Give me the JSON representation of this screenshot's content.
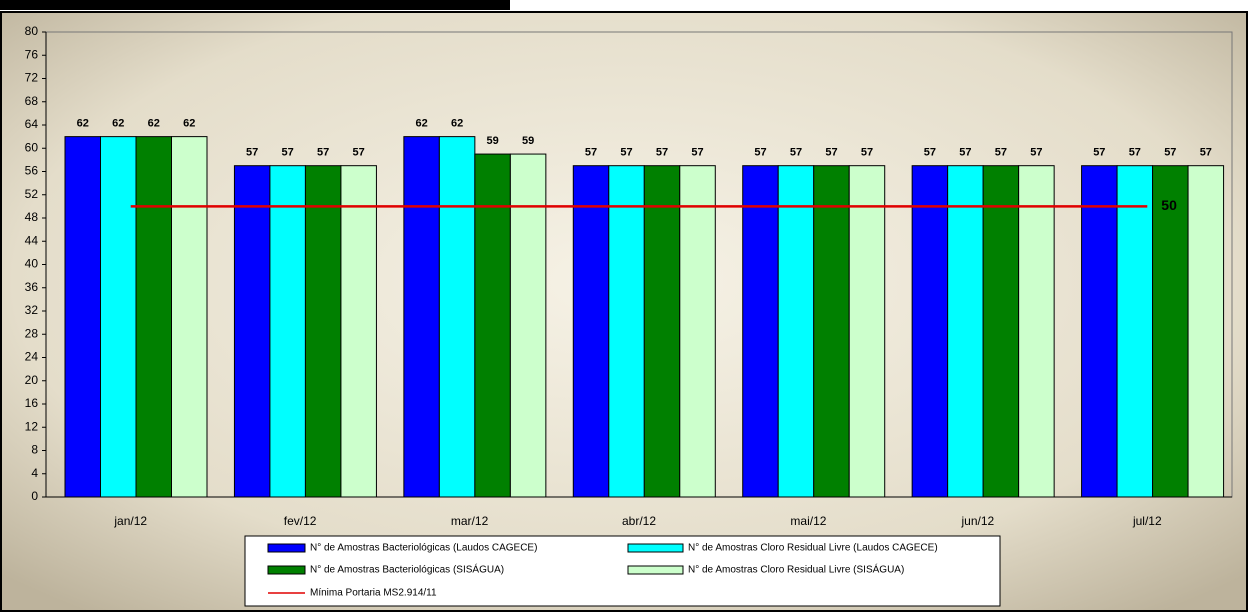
{
  "chart_data": {
    "type": "bar",
    "categories": [
      "jan/12",
      "fev/12",
      "mar/12",
      "abr/12",
      "mai/12",
      "jun/12",
      "jul/12"
    ],
    "series": [
      {
        "name": "N° de Amostras Bacteriológicas (Laudos CAGECE)",
        "color": "#0000ff",
        "label_color": "#595959",
        "values": [
          62,
          57,
          62,
          57,
          57,
          57,
          57
        ]
      },
      {
        "name": "N° de Amostras Cloro Residual Livre (Laudos CAGECE)",
        "color": "#00ffff",
        "label_color": "#8c8a5e",
        "values": [
          62,
          57,
          62,
          57,
          57,
          57,
          57
        ]
      },
      {
        "name": "N° de Amostras Bacteriológicas (SISÁGUA)",
        "color": "#008000",
        "label_color": "#993333",
        "values": [
          62,
          57,
          59,
          57,
          57,
          57,
          57
        ]
      },
      {
        "name": "N° de Amostras Cloro Residual Livre (SISÁGUA)",
        "color": "#ccffcc",
        "label_color": "#6b8e23",
        "values": [
          62,
          57,
          59,
          57,
          57,
          57,
          57
        ]
      },
      {
        "name": "Mínima Portaria MS2.914/11",
        "type": "line",
        "color": "#e00000",
        "label_color": "#e00000",
        "values": [
          50,
          50,
          50,
          50,
          50,
          50,
          50
        ]
      }
    ],
    "ylim": [
      0,
      80
    ],
    "yticks": [
      0,
      4,
      8,
      12,
      16,
      20,
      24,
      28,
      32,
      36,
      40,
      44,
      48,
      52,
      56,
      60,
      64,
      68,
      72,
      76,
      80
    ]
  }
}
